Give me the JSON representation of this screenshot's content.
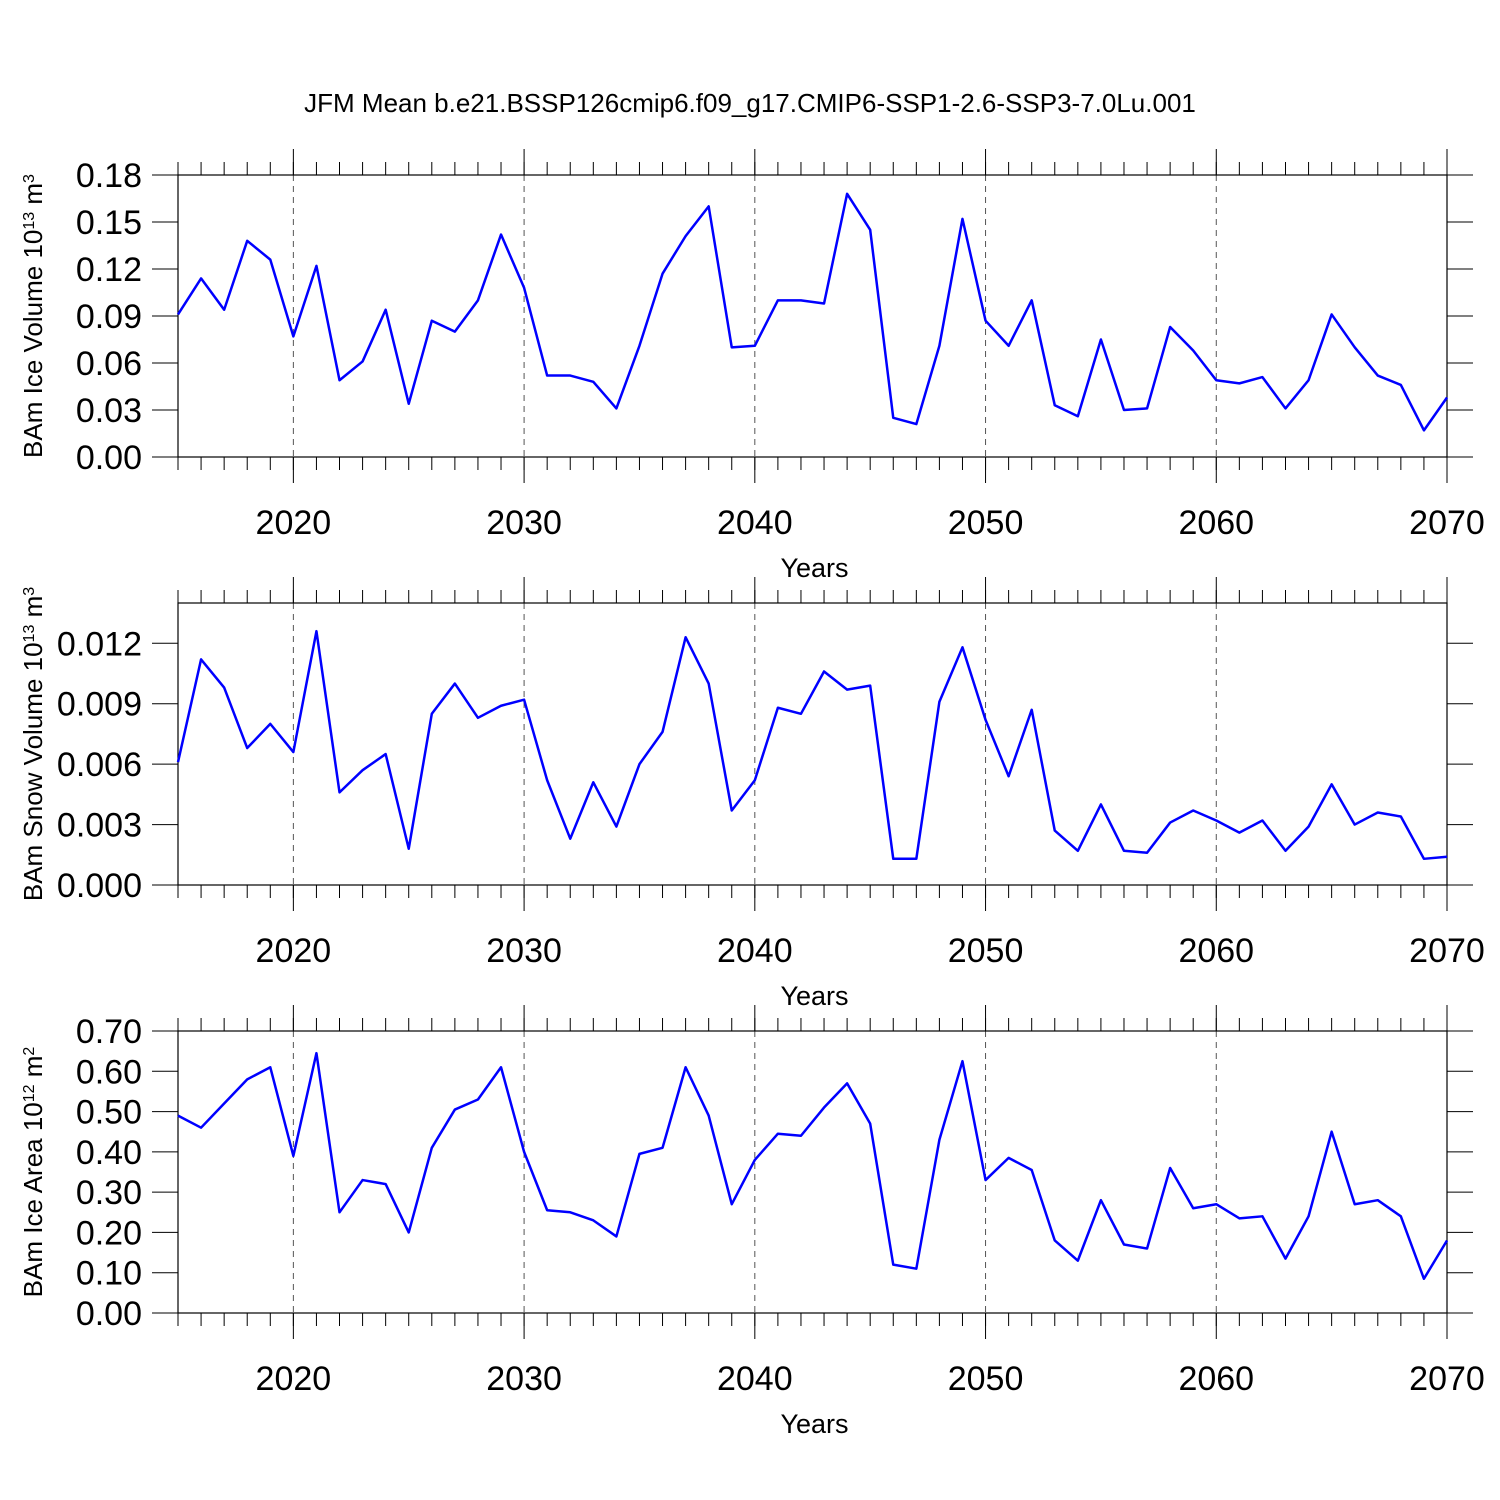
{
  "chart_data": [
    {
      "type": "line",
      "title": "JFM Mean b.e21.BSSP126cmip6.f09_g17.CMIP6-SSP1-2.6-SSP3-7.0Lu.001",
      "ylabel": [
        "BAm Ice Volume 10",
        "13",
        " m",
        "3"
      ],
      "xlabel": "Years",
      "x": [
        2015,
        2016,
        2017,
        2018,
        2019,
        2020,
        2021,
        2022,
        2023,
        2024,
        2025,
        2026,
        2027,
        2028,
        2029,
        2030,
        2031,
        2032,
        2033,
        2034,
        2035,
        2036,
        2037,
        2038,
        2039,
        2040,
        2041,
        2042,
        2043,
        2044,
        2045,
        2046,
        2047,
        2048,
        2049,
        2050,
        2051,
        2052,
        2053,
        2054,
        2055,
        2056,
        2057,
        2058,
        2059,
        2060,
        2061,
        2062,
        2063,
        2064,
        2065,
        2066,
        2067,
        2068,
        2069,
        2070
      ],
      "series": [
        {
          "color": "#0000ff",
          "values": [
            0.091,
            0.114,
            0.094,
            0.138,
            0.126,
            0.077,
            0.122,
            0.049,
            0.061,
            0.094,
            0.034,
            0.087,
            0.08,
            0.1,
            0.142,
            0.108,
            0.052,
            0.052,
            0.048,
            0.031,
            0.071,
            0.117,
            0.141,
            0.16,
            0.07,
            0.071,
            0.1,
            0.1,
            0.098,
            0.168,
            0.145,
            0.025,
            0.021,
            0.071,
            0.152,
            0.087,
            0.071,
            0.1,
            0.033,
            0.026,
            0.075,
            0.03,
            0.031,
            0.083,
            0.068,
            0.049,
            0.047,
            0.051,
            0.031,
            0.049,
            0.091,
            0.07,
            0.052,
            0.046,
            0.017,
            0.038
          ]
        }
      ],
      "xlim": [
        2015,
        2070
      ],
      "xticks": [
        2020,
        2030,
        2040,
        2050,
        2060,
        2070
      ],
      "ylim": [
        0,
        0.18
      ],
      "yticks": [
        {
          "value": 0,
          "label": "0.00"
        },
        0.03,
        0.06,
        0.09,
        0.12,
        0.15,
        0.18
      ],
      "grid": true
    },
    {
      "type": "line",
      "ylabel": [
        "BAm Snow Volume 10",
        "13",
        " m",
        "3"
      ],
      "xlabel": "Years",
      "x": [
        2015,
        2016,
        2017,
        2018,
        2019,
        2020,
        2021,
        2022,
        2023,
        2024,
        2025,
        2026,
        2027,
        2028,
        2029,
        2030,
        2031,
        2032,
        2033,
        2034,
        2035,
        2036,
        2037,
        2038,
        2039,
        2040,
        2041,
        2042,
        2043,
        2044,
        2045,
        2046,
        2047,
        2048,
        2049,
        2050,
        2051,
        2052,
        2053,
        2054,
        2055,
        2056,
        2057,
        2058,
        2059,
        2060,
        2061,
        2062,
        2063,
        2064,
        2065,
        2066,
        2067,
        2068,
        2069,
        2070
      ],
      "series": [
        {
          "color": "#0000ff",
          "values": [
            0.0061,
            0.0112,
            0.0098,
            0.0068,
            0.008,
            0.0066,
            0.0126,
            0.0046,
            0.0057,
            0.0065,
            0.0018,
            0.0085,
            0.01,
            0.0083,
            0.0089,
            0.0092,
            0.0052,
            0.0023,
            0.0051,
            0.0029,
            0.006,
            0.0076,
            0.0123,
            0.01,
            0.0037,
            0.0052,
            0.0088,
            0.0085,
            0.0106,
            0.0097,
            0.0099,
            0.0013,
            0.0013,
            0.0091,
            0.0118,
            0.0082,
            0.0054,
            0.0087,
            0.0027,
            0.0017,
            0.004,
            0.0017,
            0.0016,
            0.0031,
            0.0037,
            0.0032,
            0.0026,
            0.0032,
            0.0017,
            0.0029,
            0.005,
            0.003,
            0.0036,
            0.0034,
            0.0013,
            0.0014
          ]
        }
      ],
      "xlim": [
        2015,
        2070
      ],
      "xticks": [
        2020,
        2030,
        2040,
        2050,
        2060,
        2070
      ],
      "ylim": [
        0,
        0.014
      ],
      "yticks": [
        {
          "value": 0,
          "label": "0.000"
        },
        0.003,
        0.006,
        0.009,
        0.012
      ],
      "grid": true
    },
    {
      "type": "line",
      "ylabel": [
        "BAm Ice Area 10",
        "12",
        " m",
        "2"
      ],
      "xlabel": "Years",
      "x": [
        2015,
        2016,
        2017,
        2018,
        2019,
        2020,
        2021,
        2022,
        2023,
        2024,
        2025,
        2026,
        2027,
        2028,
        2029,
        2030,
        2031,
        2032,
        2033,
        2034,
        2035,
        2036,
        2037,
        2038,
        2039,
        2040,
        2041,
        2042,
        2043,
        2044,
        2045,
        2046,
        2047,
        2048,
        2049,
        2050,
        2051,
        2052,
        2053,
        2054,
        2055,
        2056,
        2057,
        2058,
        2059,
        2060,
        2061,
        2062,
        2063,
        2064,
        2065,
        2066,
        2067,
        2068,
        2069,
        2070
      ],
      "series": [
        {
          "color": "#0000ff",
          "values": [
            0.49,
            0.46,
            0.52,
            0.58,
            0.61,
            0.39,
            0.645,
            0.25,
            0.33,
            0.32,
            0.2,
            0.41,
            0.505,
            0.53,
            0.61,
            0.4,
            0.255,
            0.25,
            0.23,
            0.19,
            0.395,
            0.41,
            0.61,
            0.49,
            0.27,
            0.38,
            0.445,
            0.44,
            0.51,
            0.57,
            0.47,
            0.12,
            0.11,
            0.43,
            0.625,
            0.33,
            0.385,
            0.355,
            0.18,
            0.13,
            0.28,
            0.17,
            0.16,
            0.36,
            0.26,
            0.27,
            0.235,
            0.24,
            0.135,
            0.24,
            0.45,
            0.27,
            0.28,
            0.24,
            0.085,
            0.18
          ]
        }
      ],
      "xlim": [
        2015,
        2070
      ],
      "xticks": [
        2020,
        2030,
        2040,
        2050,
        2060,
        2070
      ],
      "ylim": [
        0,
        0.7
      ],
      "yticks": [
        {
          "value": 0,
          "label": "0.00"
        },
        {
          "value": 0.1,
          "label": "0.10"
        },
        {
          "value": 0.2,
          "label": "0.20"
        },
        {
          "value": 0.3,
          "label": "0.30"
        },
        {
          "value": 0.4,
          "label": "0.40"
        },
        {
          "value": 0.5,
          "label": "0.50"
        },
        {
          "value": 0.6,
          "label": "0.60"
        },
        {
          "value": 0.7,
          "label": "0.70"
        }
      ],
      "grid": true
    }
  ]
}
